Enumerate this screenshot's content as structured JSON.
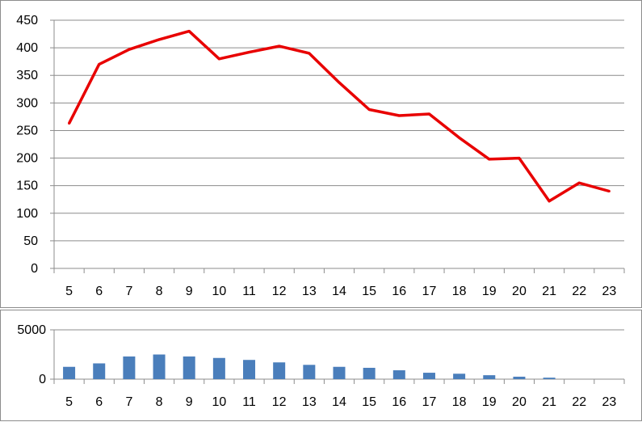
{
  "colors": {
    "line": "#e80000",
    "bar": "#4a7ebb",
    "grid": "#8c8c8c",
    "axis": "#8c8c8c",
    "text": "#000000"
  },
  "chart_data": [
    {
      "type": "line",
      "title": "",
      "xlabel": "",
      "ylabel": "",
      "categories": [
        "5",
        "6",
        "7",
        "8",
        "9",
        "10",
        "11",
        "12",
        "13",
        "14",
        "15",
        "16",
        "17",
        "18",
        "19",
        "20",
        "21",
        "22",
        "23"
      ],
      "series": [
        {
          "values": [
            263,
            370,
            397,
            415,
            430,
            380,
            392,
            403,
            390,
            337,
            288,
            277,
            280,
            237,
            198,
            200,
            122,
            155,
            140
          ]
        }
      ],
      "ylim": [
        0,
        450
      ],
      "yticks": [
        "0",
        "50",
        "100",
        "150",
        "200",
        "250",
        "300",
        "350",
        "400",
        "450"
      ],
      "grid": true,
      "legend": "none"
    },
    {
      "type": "bar",
      "title": "",
      "xlabel": "",
      "ylabel": "",
      "categories": [
        "5",
        "6",
        "7",
        "8",
        "9",
        "10",
        "11",
        "12",
        "13",
        "14",
        "15",
        "16",
        "17",
        "18",
        "19",
        "20",
        "21",
        "22",
        "23"
      ],
      "series": [
        {
          "values": [
            1250,
            1600,
            2300,
            2500,
            2300,
            2150,
            1950,
            1700,
            1450,
            1250,
            1150,
            900,
            650,
            550,
            400,
            250,
            150,
            0,
            0
          ]
        }
      ],
      "ylim": [
        0,
        5000
      ],
      "yticks": [
        "0",
        "5000"
      ],
      "grid": true,
      "legend": "none"
    }
  ]
}
